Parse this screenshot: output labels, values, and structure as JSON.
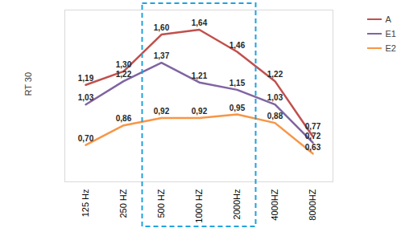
{
  "chart_data": {
    "type": "line",
    "y_label": "RT 30",
    "categories": [
      "125 Hz",
      "250 HZ",
      "500 HZ",
      "1000 HZ",
      "2000Hz",
      "4000HZ",
      "8000HZ"
    ],
    "ylim": [
      0.4,
      1.8
    ],
    "yticks": [],
    "tick_labels": "x",
    "data_labels": true,
    "legend": "top-right",
    "series": [
      {
        "name": "A",
        "color": "#c0504d",
        "values": [
          1.19,
          1.3,
          1.6,
          1.64,
          1.46,
          1.22,
          0.77
        ],
        "value_labels": [
          "1,19",
          "1,30",
          "1,60",
          "1,64",
          "1,46",
          "1,22",
          "0,77"
        ]
      },
      {
        "name": "E1",
        "color": "#8064a2",
        "values": [
          1.03,
          1.22,
          1.37,
          1.21,
          1.15,
          1.03,
          0.72
        ],
        "value_labels": [
          "1,03",
          "1,22",
          "1,37",
          "1,21",
          "1,15",
          "1,03",
          "0,72"
        ]
      },
      {
        "name": "E2",
        "color": "#f79646",
        "values": [
          0.7,
          0.86,
          0.92,
          0.92,
          0.95,
          0.88,
          0.63
        ],
        "value_labels": [
          "0,70",
          "0,86",
          "0,92",
          "0,92",
          "0,95",
          "0,88",
          "0,63"
        ]
      }
    ]
  }
}
